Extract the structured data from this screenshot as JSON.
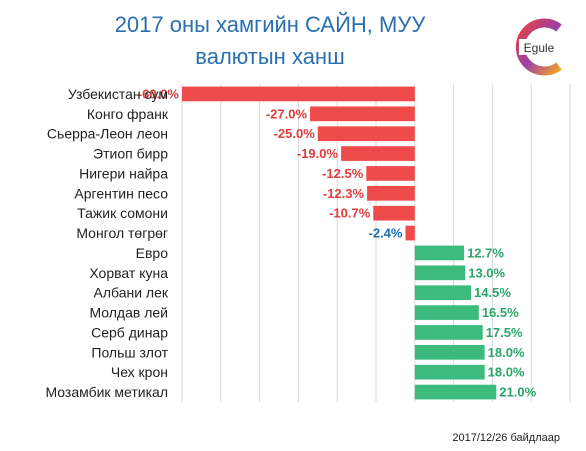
{
  "header": {
    "title_line1": "2017 оны хамгийн САЙН, МУУ",
    "title_line2": "валютын ханш",
    "logo_text": "Egule"
  },
  "footnote": "2017/12/26 байдлаар",
  "colors": {
    "negative": "#ef4b4b",
    "positive": "#3dbb7f",
    "negative_label": "#e03c3c",
    "highlight_label": "#1a6fb5",
    "positive_label": "#2aa66a",
    "title": "#2a6fb0",
    "grid": "#d9d9d9"
  },
  "chart_data": {
    "type": "bar",
    "orientation": "horizontal",
    "categories": [
      "Узбекистан сум",
      "Конго франк",
      "Сьерра-Леон леон",
      "Этиоп бирр",
      "Нигери найра",
      "Аргентин песо",
      "Тажик сомони",
      "Монгол төгрөг",
      "Евро",
      "Хорват куна",
      "Албани лек",
      "Молдав лей",
      "Серб динар",
      "Польш злот",
      "Чех крон",
      "Мозамбик метикал"
    ],
    "values": [
      -60.0,
      -27.0,
      -25.0,
      -19.0,
      -12.5,
      -12.3,
      -10.7,
      -2.4,
      12.7,
      13.0,
      14.5,
      16.5,
      17.5,
      18.0,
      18.0,
      21.0
    ],
    "labels": [
      "-60.0%",
      "-27.0%",
      "-25.0%",
      "-19.0%",
      "-12.5%",
      "-12.3%",
      "-10.7%",
      "-2.4%",
      "12.7%",
      "13.0%",
      "14.5%",
      "16.5%",
      "17.5%",
      "18.0%",
      "18.0%",
      "21.0%"
    ],
    "highlight_category": "Монгол төгрөг",
    "xlim": [
      -60,
      40
    ],
    "grid": true
  }
}
